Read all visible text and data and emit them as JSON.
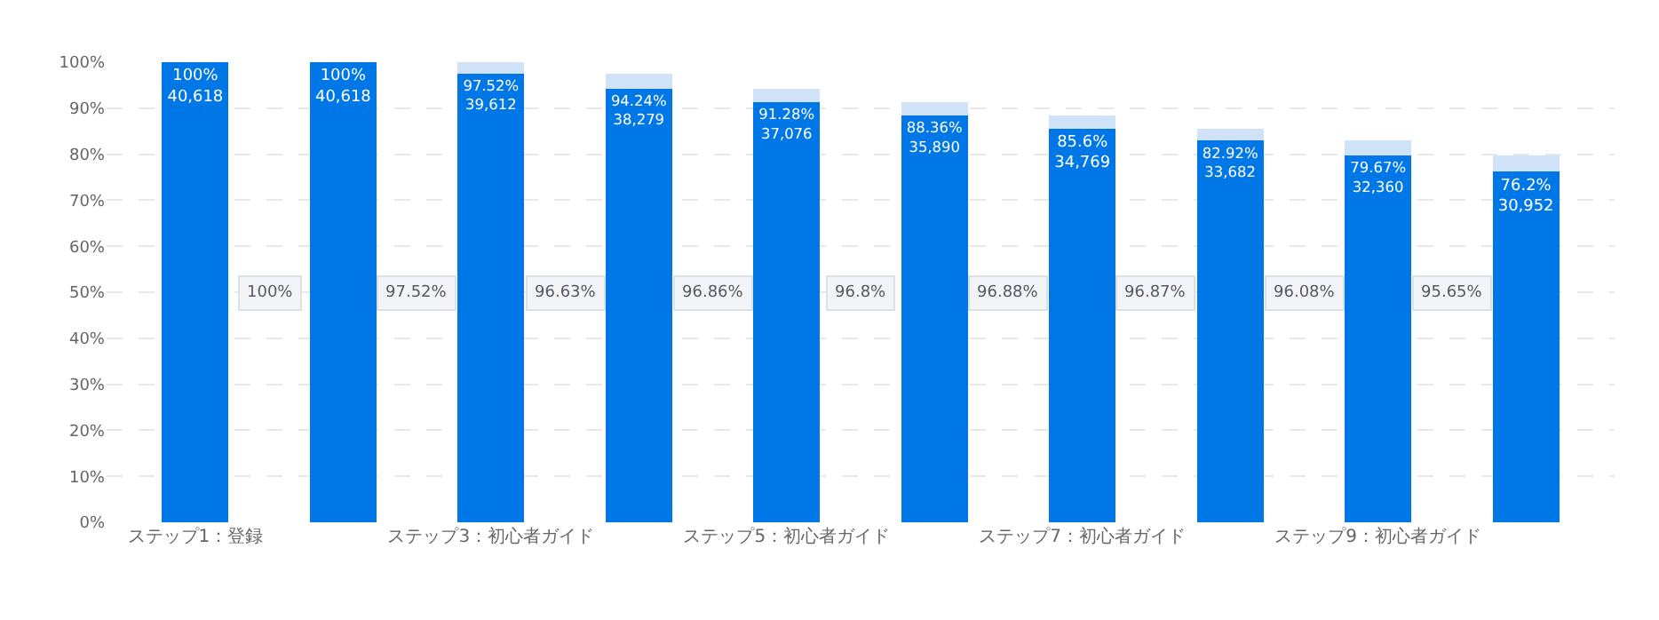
{
  "chart_data": {
    "type": "bar",
    "stacked": true,
    "categories": [
      "ステップ1：登録",
      null,
      "ステップ3：初心者ガイド",
      null,
      "ステップ5：初心者ガイド",
      null,
      "ステップ7：初心者ガイド",
      null,
      "ステップ9：初心者ガイド",
      null
    ],
    "series": [
      {
        "color": "#0077e6",
        "values": [
          100,
          100,
          97.52,
          94.24,
          91.28,
          88.36,
          85.6,
          82.92,
          79.67,
          76.2
        ],
        "value_labels": [
          "100%\n40,618",
          "100%\n40,618",
          "97.52%\n39,612",
          "94.24%\n38,279",
          "91.28%\n37,076",
          "88.36%\n35,890",
          "85.6%\n34,769",
          "82.92%\n33,682",
          "79.67%\n32,360",
          "76.2%\n30,952"
        ]
      },
      {
        "color": "#cfe2f8",
        "values": [
          null,
          null,
          2.48,
          3.28,
          2.96,
          2.92,
          2.76,
          2.68,
          3.25,
          3.47
        ]
      }
    ],
    "annotations": [
      "100%",
      "97.52%",
      "96.63%",
      "96.86%",
      "96.8%",
      "96.88%",
      "96.87%",
      "96.08%",
      "95.65%"
    ],
    "ylim": [
      0,
      100
    ],
    "yticks": [
      {
        "value": 0,
        "label": "0%"
      },
      {
        "value": 10,
        "label": "10%"
      },
      {
        "value": 20,
        "label": "20%"
      },
      {
        "value": 30,
        "label": "30%"
      },
      {
        "value": 40,
        "label": "40%"
      },
      {
        "value": 50,
        "label": "50%"
      },
      {
        "value": 60,
        "label": "60%"
      },
      {
        "value": 70,
        "label": "70%"
      },
      {
        "value": 80,
        "label": "80%"
      },
      {
        "value": 90,
        "label": "90%"
      },
      {
        "value": 100,
        "label": "100%"
      }
    ],
    "grid": "y"
  }
}
